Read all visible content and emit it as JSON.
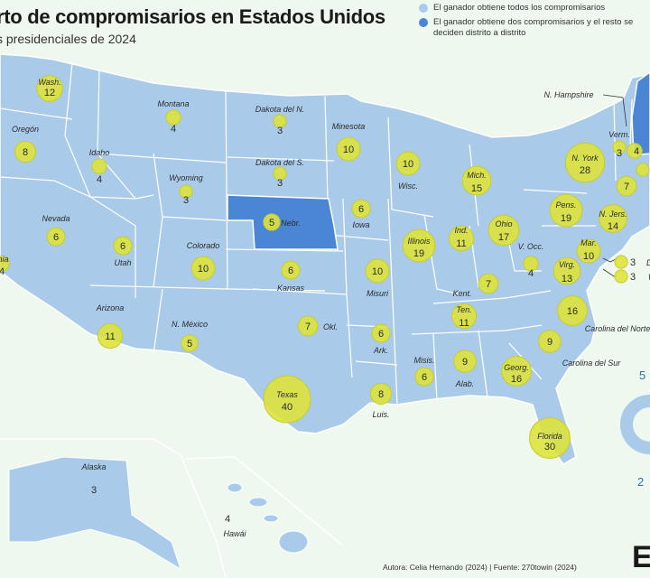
{
  "header": {
    "title": "rto de compromisarios en Estados Unidos",
    "subtitle": "s presidenciales de 2024"
  },
  "legend": [
    {
      "label": "El ganador obtiene todos los compromisarios",
      "color": "#a9cbe9"
    },
    {
      "label": "El ganador obtiene dos compromisarios y el resto se deciden distrito a distrito",
      "color": "#4a86d4"
    }
  ],
  "colors": {
    "background": "#eef8ee",
    "land": "#a9cbe9",
    "state_border": "#ffffff",
    "split_state": "#4a86d4",
    "bubble": "#dde33c",
    "bubble_ring": "#c6cc29"
  },
  "states": [
    {
      "id": "wash",
      "label": "Wash.",
      "votes": "12",
      "split": false
    },
    {
      "id": "oregon",
      "label": "Oregón",
      "votes": "8",
      "split": false
    },
    {
      "id": "california",
      "label": "rnia",
      "votes": "4",
      "split": false
    },
    {
      "id": "idaho",
      "label": "Idaho",
      "votes": "4",
      "split": false
    },
    {
      "id": "nevada",
      "label": "Nevada",
      "votes": "6",
      "split": false
    },
    {
      "id": "montana",
      "label": "Montana",
      "votes": "4",
      "split": false
    },
    {
      "id": "wyoming",
      "label": "Wyoming",
      "votes": "3",
      "split": false
    },
    {
      "id": "utah",
      "label": "Utah",
      "votes": "6",
      "split": false
    },
    {
      "id": "arizona",
      "label": "Arizona",
      "votes": "11",
      "split": false
    },
    {
      "id": "colorado",
      "label": "Colorado",
      "votes": "10",
      "split": false
    },
    {
      "id": "nmexico",
      "label": "N. México",
      "votes": "5",
      "split": false
    },
    {
      "id": "ndakota",
      "label": "Dakota del N.",
      "votes": "3",
      "split": false
    },
    {
      "id": "sdakota",
      "label": "Dakota del S.",
      "votes": "3",
      "split": false
    },
    {
      "id": "nebraska",
      "label": "Nebr.",
      "votes": "5",
      "split": true
    },
    {
      "id": "kansas",
      "label": "Kansas",
      "votes": "6",
      "split": false
    },
    {
      "id": "oklahoma",
      "label": "Okl.",
      "votes": "7",
      "split": false
    },
    {
      "id": "texas",
      "label": "Texas",
      "votes": "40",
      "split": false
    },
    {
      "id": "minnesota",
      "label": "Minesota",
      "votes": "10",
      "split": false
    },
    {
      "id": "iowa",
      "label": "Iowa",
      "votes": "6",
      "split": false
    },
    {
      "id": "missouri",
      "label": "Misuri",
      "votes": "10",
      "split": false
    },
    {
      "id": "arkansas",
      "label": "Ark.",
      "votes": "6",
      "split": false
    },
    {
      "id": "louisiana",
      "label": "Luis.",
      "votes": "8",
      "split": false
    },
    {
      "id": "wisconsin",
      "label": "Wisc.",
      "votes": "10",
      "split": false
    },
    {
      "id": "illinois",
      "label": "Illinois",
      "votes": "19",
      "split": false
    },
    {
      "id": "michigan",
      "label": "Mich.",
      "votes": "15",
      "split": false
    },
    {
      "id": "indiana",
      "label": "Ind.",
      "votes": "11",
      "split": false
    },
    {
      "id": "ohio",
      "label": "Ohio",
      "votes": "17",
      "split": false
    },
    {
      "id": "kentucky",
      "label": "Kent.",
      "votes": "7",
      "split": false
    },
    {
      "id": "tennessee",
      "label": "Ten.",
      "votes": "11",
      "split": false
    },
    {
      "id": "mississippi",
      "label": "Misis.",
      "votes": "6",
      "split": false
    },
    {
      "id": "alabama",
      "label": "Alab.",
      "votes": "9",
      "split": false
    },
    {
      "id": "georgia",
      "label": "Georg.",
      "votes": "16",
      "split": false
    },
    {
      "id": "florida",
      "label": "Florida",
      "votes": "30",
      "split": false
    },
    {
      "id": "scarolina",
      "label": "Carolina del Sur",
      "votes": "9",
      "split": false
    },
    {
      "id": "ncarolina",
      "label": "Carolina del Norte",
      "votes": "16",
      "split": false
    },
    {
      "id": "virginia",
      "label": "Virg.",
      "votes": "13",
      "split": false
    },
    {
      "id": "wvirginia",
      "label": "V. Occ.",
      "votes": "4",
      "split": false
    },
    {
      "id": "pennsylvania",
      "label": "Pens.",
      "votes": "19",
      "split": false
    },
    {
      "id": "newyork",
      "label": "N. York",
      "votes": "28",
      "split": false
    },
    {
      "id": "newjersey",
      "label": "N. Jers.",
      "votes": "14",
      "split": false
    },
    {
      "id": "maryland",
      "label": "Mar.",
      "votes": "10",
      "split": false
    },
    {
      "id": "delaware",
      "label": "D",
      "votes": "3",
      "split": false
    },
    {
      "id": "washdc",
      "label": "Was",
      "votes": "3",
      "split": false
    },
    {
      "id": "vermont",
      "label": "Verm.",
      "votes": "3",
      "split": false
    },
    {
      "id": "nhampshire",
      "label": "N. Hampshire",
      "votes": "4",
      "split": false
    },
    {
      "id": "massachusetts",
      "label": "",
      "votes": "",
      "split": false
    },
    {
      "id": "connecticut",
      "label": "",
      "votes": "7",
      "split": false
    },
    {
      "id": "alaska",
      "label": "Alaska",
      "votes": "3",
      "split": false
    },
    {
      "id": "hawaii",
      "label": "Hawái",
      "votes": "4",
      "split": false
    }
  ],
  "side_numbers": {
    "top": "5",
    "bottom": "2"
  },
  "footer": {
    "credit": "Autora: Celia Hernando (2024) | Fuente: 270towin (2024)",
    "logo": "E"
  }
}
